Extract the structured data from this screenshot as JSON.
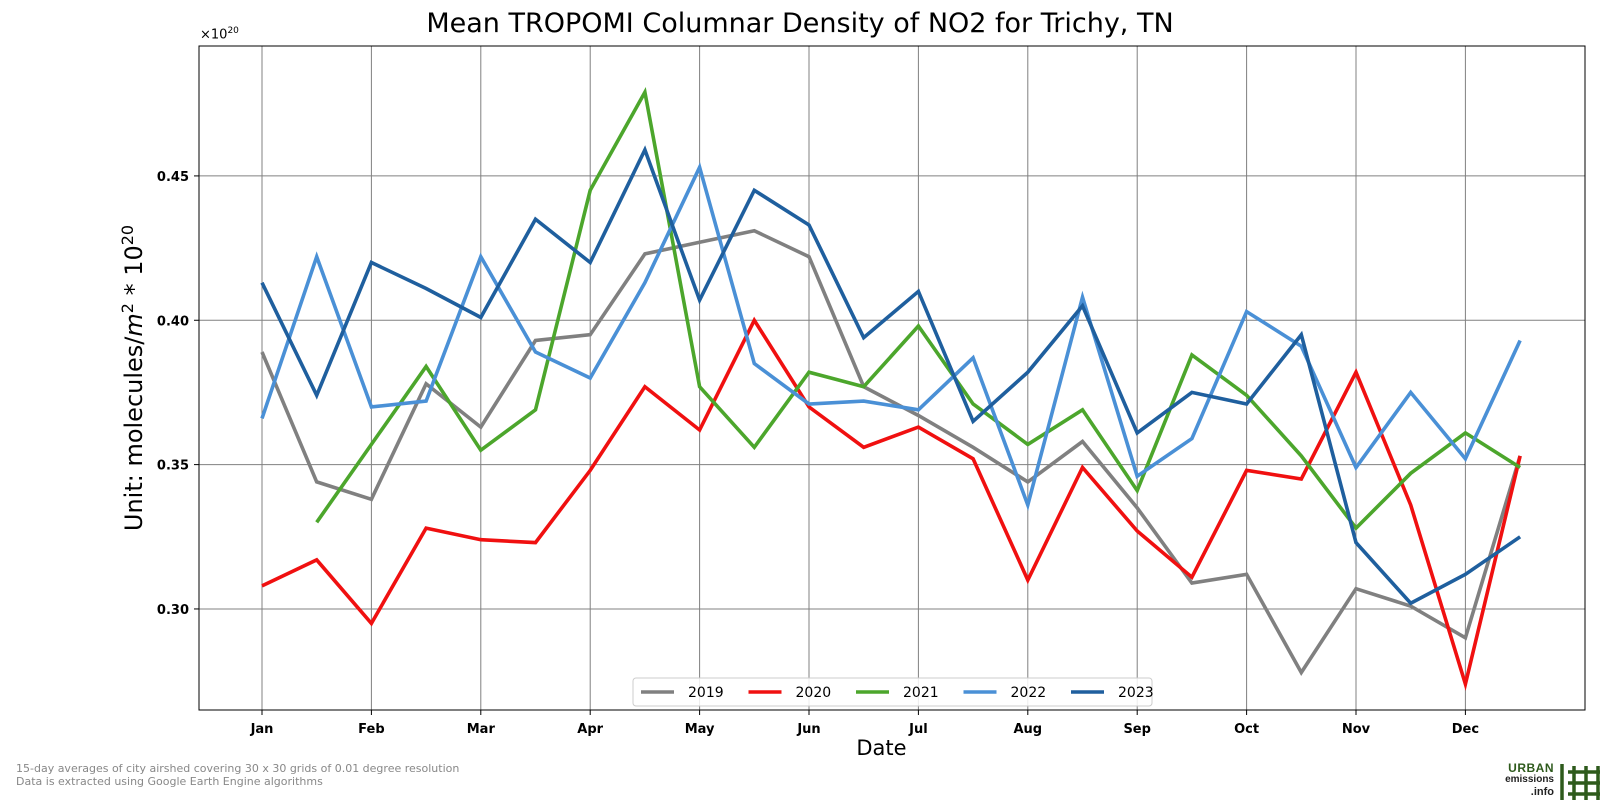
{
  "chart_data": {
    "type": "line",
    "title": "Mean TROPOMI Columnar Density of NO2 for Trichy, TN",
    "xlabel": "Date",
    "ylabel_prefix": "Unit: molecules/",
    "ylabel_unit": "m",
    "ylabel_unit_power": "2",
    "ylabel_mid": " * 10",
    "ylabel_power": "20",
    "offset_base": "×10",
    "offset_power": "20",
    "ylim": [
      0.265,
      0.495
    ],
    "yticks": [
      "0.30",
      "0.35",
      "0.40",
      "0.45"
    ],
    "ytick_values": [
      0.3,
      0.35,
      0.4,
      0.45
    ],
    "xticks": [
      "Jan",
      "Feb",
      "Mar",
      "Apr",
      "May",
      "Jun",
      "Jul",
      "Aug",
      "Sep",
      "Oct",
      "Nov",
      "Dec"
    ],
    "grid": true,
    "legend_placement": "lower-center",
    "x_periods": [
      "Jan 1",
      "Jan 16",
      "Feb 1",
      "Feb 16",
      "Mar 1",
      "Mar 16",
      "Apr 1",
      "Apr 16",
      "May 1",
      "May 16",
      "Jun 1",
      "Jun 16",
      "Jul 1",
      "Jul 16",
      "Aug 1",
      "Aug 16",
      "Sep 1",
      "Sep 16",
      "Oct 1",
      "Oct 16",
      "Nov 1",
      "Nov 16",
      "Dec 1",
      "Dec 16"
    ],
    "series": [
      {
        "name": "2019",
        "color": "#808080",
        "values": [
          0.389,
          0.344,
          0.338,
          0.378,
          0.363,
          0.393,
          0.395,
          0.423,
          0.427,
          0.431,
          0.422,
          0.377,
          0.367,
          0.356,
          0.344,
          0.358,
          0.335,
          0.309,
          0.312,
          0.278,
          0.307,
          0.301,
          0.29,
          0.353
        ]
      },
      {
        "name": "2020",
        "color": "#f01010",
        "values": [
          0.308,
          0.317,
          0.295,
          0.328,
          0.324,
          0.323,
          0.348,
          0.377,
          0.362,
          0.4,
          0.37,
          0.356,
          0.363,
          0.352,
          0.31,
          0.349,
          0.327,
          0.311,
          0.348,
          0.345,
          0.382,
          0.336,
          0.274,
          0.353
        ]
      },
      {
        "name": "2021",
        "color": "#4ca62c",
        "values": [
          null,
          0.33,
          0.357,
          0.384,
          0.355,
          0.369,
          0.445,
          0.479,
          0.377,
          0.356,
          0.382,
          0.377,
          0.398,
          0.371,
          0.357,
          0.369,
          0.341,
          0.388,
          0.374,
          0.353,
          0.328,
          0.347,
          0.361,
          0.349
        ]
      },
      {
        "name": "2022",
        "color": "#4a90d6",
        "values": [
          0.366,
          0.422,
          0.37,
          0.372,
          0.422,
          0.389,
          0.38,
          0.413,
          0.453,
          0.385,
          0.371,
          0.372,
          0.369,
          0.387,
          0.336,
          0.408,
          0.346,
          0.359,
          0.403,
          0.391,
          0.349,
          0.375,
          0.352,
          0.393
        ]
      },
      {
        "name": "2023",
        "color": "#1f5f9e",
        "values": [
          0.413,
          0.374,
          0.42,
          0.411,
          0.401,
          0.435,
          0.42,
          0.459,
          0.407,
          0.445,
          0.433,
          0.394,
          0.41,
          0.365,
          0.382,
          0.405,
          0.361,
          0.375,
          0.371,
          0.395,
          0.323,
          0.302,
          0.312,
          0.325
        ]
      }
    ]
  },
  "footnote": {
    "line1": "15-day averages of city airshed covering 30 x 30 grids of 0.01 degree resolution",
    "line2": "Data is extracted using Google Earth Engine algorithms"
  },
  "logo": {
    "line1": "URBAN",
    "line2": "emissions",
    "line3": ".info"
  }
}
